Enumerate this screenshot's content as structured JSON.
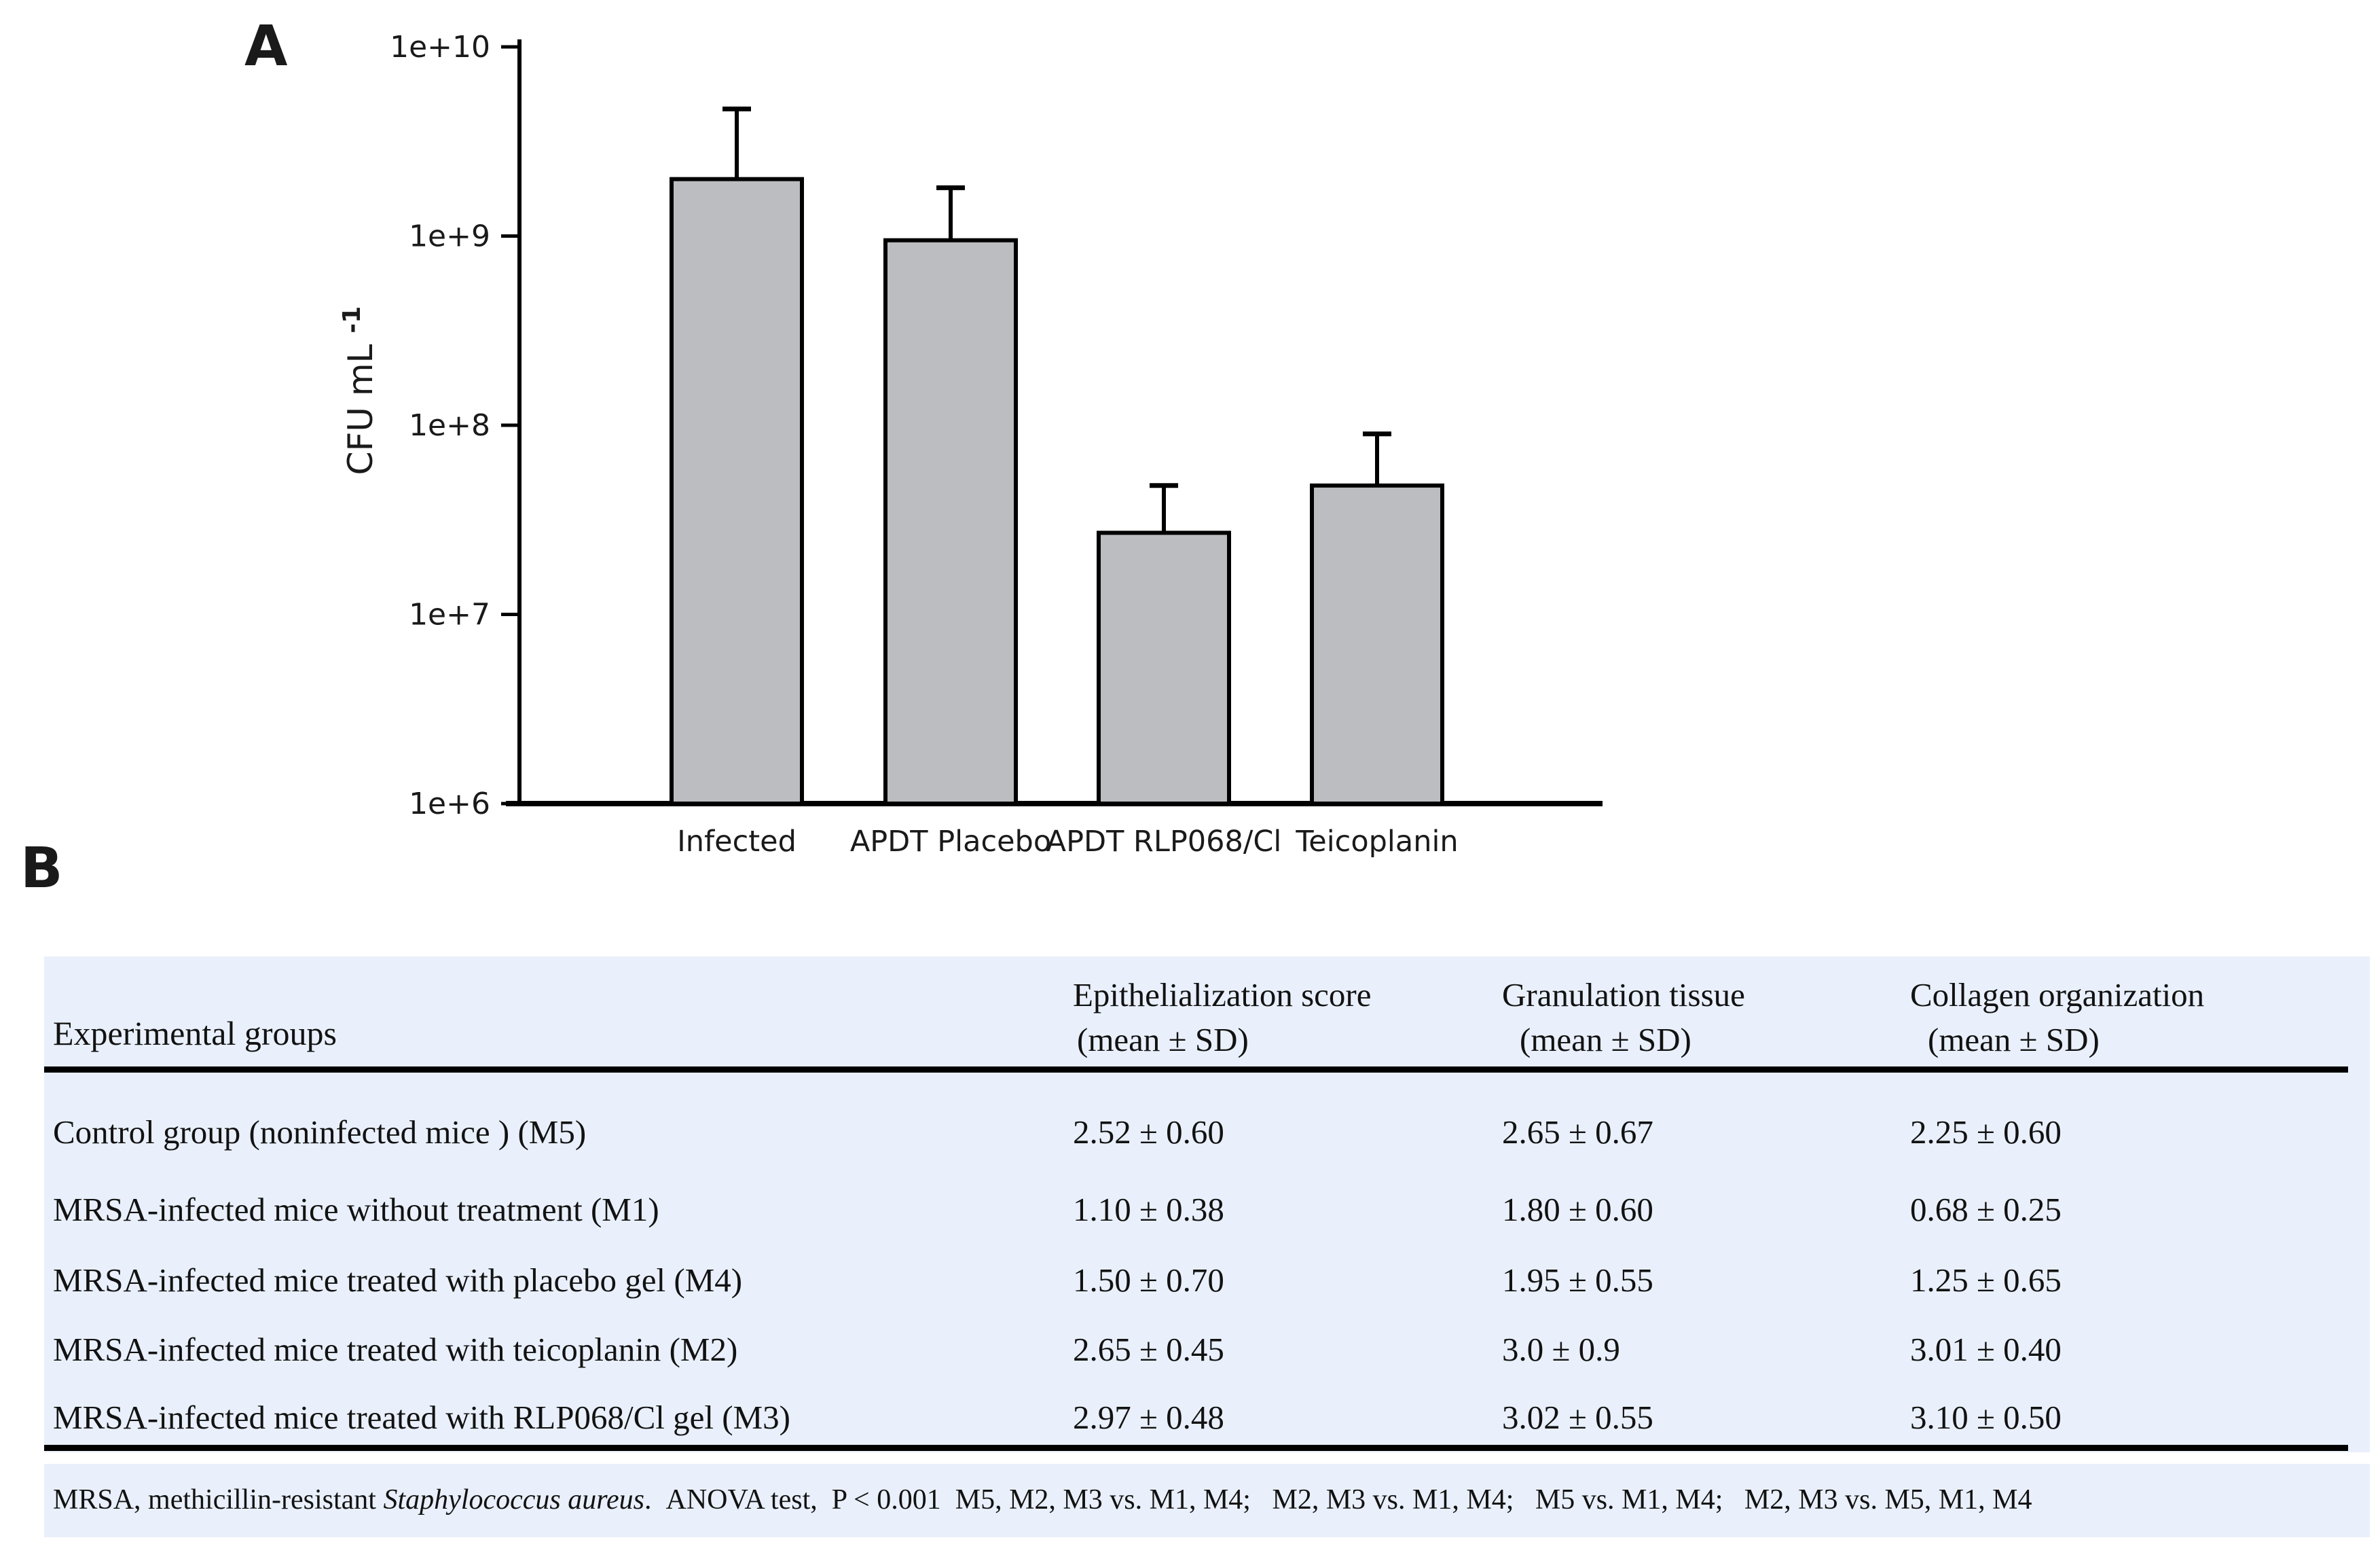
{
  "panel_a": {
    "label": "A",
    "chart_data": {
      "type": "bar",
      "title": "",
      "xlabel": "",
      "ylabel": "CFU mL",
      "ylabel_superscript": "-1",
      "yscale": "log",
      "ylim": [
        1000000,
        10000000000
      ],
      "yticks": [
        "1e+6",
        "1e+7",
        "1e+8",
        "1e+9",
        "1e+10"
      ],
      "categories": [
        "Infected",
        "APDT Placebo",
        "APDT RLP068/Cl",
        "Teicoplanin"
      ],
      "values": [
        2000000000,
        950000000,
        27000000,
        48000000
      ],
      "upper_error_tops": [
        4700000000,
        1800000000,
        48000000,
        90000000
      ],
      "bar_color": "#bbbdc0",
      "bar_edge_color": "#000000",
      "grid": false,
      "legend": null
    }
  },
  "panel_b": {
    "label": "B",
    "table": {
      "group_column_header": "Experimental groups",
      "columns": [
        {
          "title": "Epithelialization score",
          "subtitle": "(mean ± SD)"
        },
        {
          "title": "Granulation tissue",
          "subtitle": "(mean ± SD)"
        },
        {
          "title": "Collagen organization",
          "subtitle": "(mean ± SD)"
        }
      ],
      "rows": [
        {
          "group": "Control group (noninfected mice ) (M5)",
          "epithelialization": "2.52 ± 0.60",
          "granulation": "2.65 ± 0.67",
          "collagen": "2.25 ± 0.60"
        },
        {
          "group": "MRSA-infected mice without treatment (M1)",
          "epithelialization": "1.10 ± 0.38",
          "granulation": "1.80 ± 0.60",
          "collagen": "0.68 ± 0.25"
        },
        {
          "group": "MRSA-infected mice treated with placebo gel (M4)",
          "epithelialization": "1.50 ± 0.70",
          "granulation": "1.95 ± 0.55",
          "collagen": "1.25 ± 0.65"
        },
        {
          "group": "MRSA-infected mice treated with teicoplanin (M2)",
          "epithelialization": "2.65 ± 0.45",
          "granulation": "3.0 ± 0.9",
          "collagen": "3.01 ± 0.40"
        },
        {
          "group": "MRSA-infected mice treated with RLP068/Cl gel (M3)",
          "epithelialization": "2.97 ± 0.48",
          "granulation": "3.02 ± 0.55",
          "collagen": "3.10 ± 0.50"
        }
      ],
      "footnote": {
        "prefix": "MRSA, methicillin-resistant ",
        "italic": "Staphylococcus aureus",
        "suffix": ".  ANOVA test,  P < 0.001  M5, M2, M3 vs. M1, M4;   M2, M3 vs. M1, M4;   M5 vs. M1, M4;   M2, M3 vs. M5, M1, M4"
      },
      "colors": {
        "background": "#e9f0fb",
        "rule": "#000000",
        "text": "#121212"
      }
    }
  }
}
